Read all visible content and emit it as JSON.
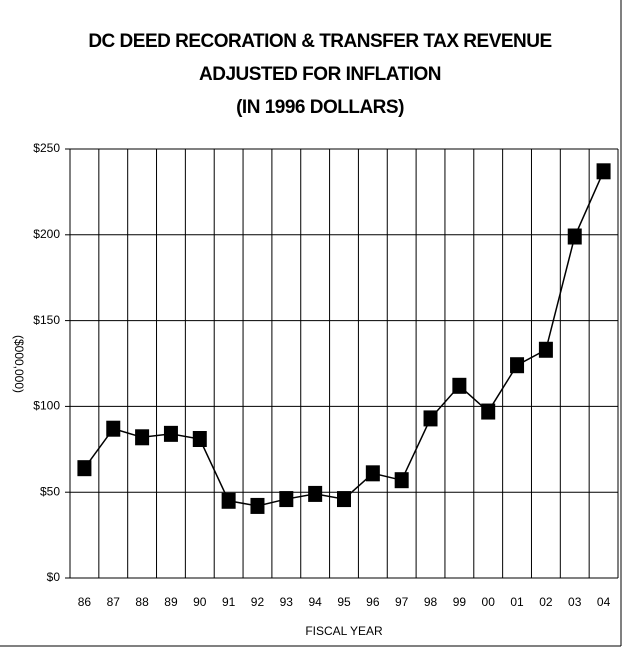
{
  "chart_data": {
    "type": "line",
    "title": [
      "DC DEED RECORATION & TRANSFER TAX REVENUE",
      "ADJUSTED FOR INFLATION",
      "(IN 1996 DOLLARS)"
    ],
    "x_label": "FISCAL YEAR",
    "y_label": "($000,000)",
    "categories": [
      "86",
      "87",
      "88",
      "89",
      "90",
      "91",
      "92",
      "93",
      "94",
      "95",
      "96",
      "97",
      "98",
      "99",
      "00",
      "01",
      "02",
      "03",
      "04"
    ],
    "values": [
      64,
      87,
      82,
      84,
      81,
      45,
      42,
      46,
      49,
      46,
      61,
      57,
      93,
      112,
      97,
      124,
      133,
      199,
      237
    ],
    "color": "#000000",
    "ylim": [
      0,
      250
    ],
    "yticks": [
      {
        "value": 0,
        "label": "$0"
      },
      {
        "value": 50,
        "label": "$50"
      },
      {
        "value": 100,
        "label": "$100"
      },
      {
        "value": 150,
        "label": "$150"
      },
      {
        "value": 200,
        "label": "$200"
      },
      {
        "value": 250,
        "label": "$250"
      }
    ],
    "grid": true
  }
}
